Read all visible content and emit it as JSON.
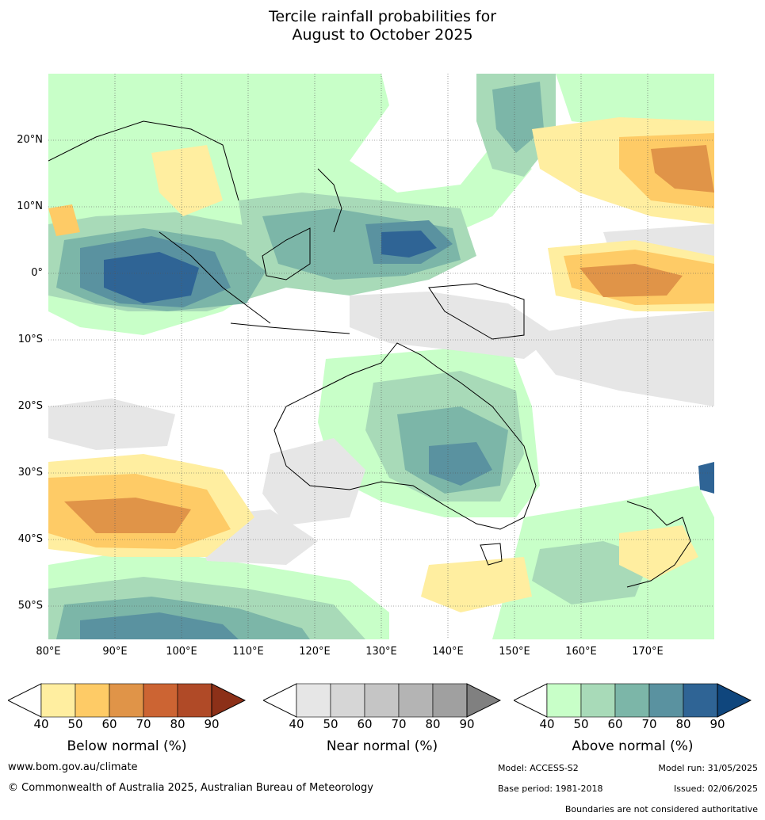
{
  "title_line1": "Tercile rainfall probabilities for",
  "title_line2": "August to October 2025",
  "map": {
    "lat_labels": [
      "20°N",
      "10°N",
      "0°",
      "10°S",
      "20°S",
      "30°S",
      "40°S",
      "50°S"
    ],
    "lon_labels": [
      "80°E",
      "90°E",
      "100°E",
      "110°E",
      "120°E",
      "130°E",
      "140°E",
      "150°E",
      "160°E",
      "170°E"
    ],
    "lat_values": [
      20,
      10,
      0,
      -10,
      -20,
      -30,
      -40,
      -50
    ],
    "lon_values": [
      80,
      90,
      100,
      110,
      120,
      130,
      140,
      150,
      160,
      170
    ],
    "extent": {
      "lon_min": 80,
      "lon_max": 180,
      "lat_min": -55,
      "lat_max": 30
    }
  },
  "legends": [
    {
      "label": "Below normal (%)",
      "ticks": [
        "40",
        "50",
        "60",
        "70",
        "80",
        "90"
      ],
      "colors": [
        "#ffeea0",
        "#fecb66",
        "#e09448",
        "#cc6433",
        "#b04a27",
        "#8c3018"
      ]
    },
    {
      "label": "Near normal (%)",
      "ticks": [
        "40",
        "50",
        "60",
        "70",
        "80",
        "90"
      ],
      "colors": [
        "#e6e6e6",
        "#d6d6d6",
        "#c5c5c5",
        "#b4b4b4",
        "#a0a0a0",
        "#808080"
      ]
    },
    {
      "label": "Above normal (%)",
      "ticks": [
        "40",
        "50",
        "60",
        "70",
        "80",
        "90"
      ],
      "colors": [
        "#c8ffc8",
        "#a8dab8",
        "#7cb6a8",
        "#5a92a0",
        "#2f6495",
        "#0f467d"
      ]
    }
  ],
  "footer": {
    "website": "www.bom.gov.au/climate",
    "copyright": "© Commonwealth of Australia 2025, Australian Bureau of Meteorology",
    "model": "Model: ACCESS-S2",
    "model_run": "Model run: 31/05/2025",
    "base_period": "Base period: 1981-2018",
    "issued": "Issued: 02/06/2025",
    "disclaimer": "Boundaries are not considered authoritative"
  }
}
